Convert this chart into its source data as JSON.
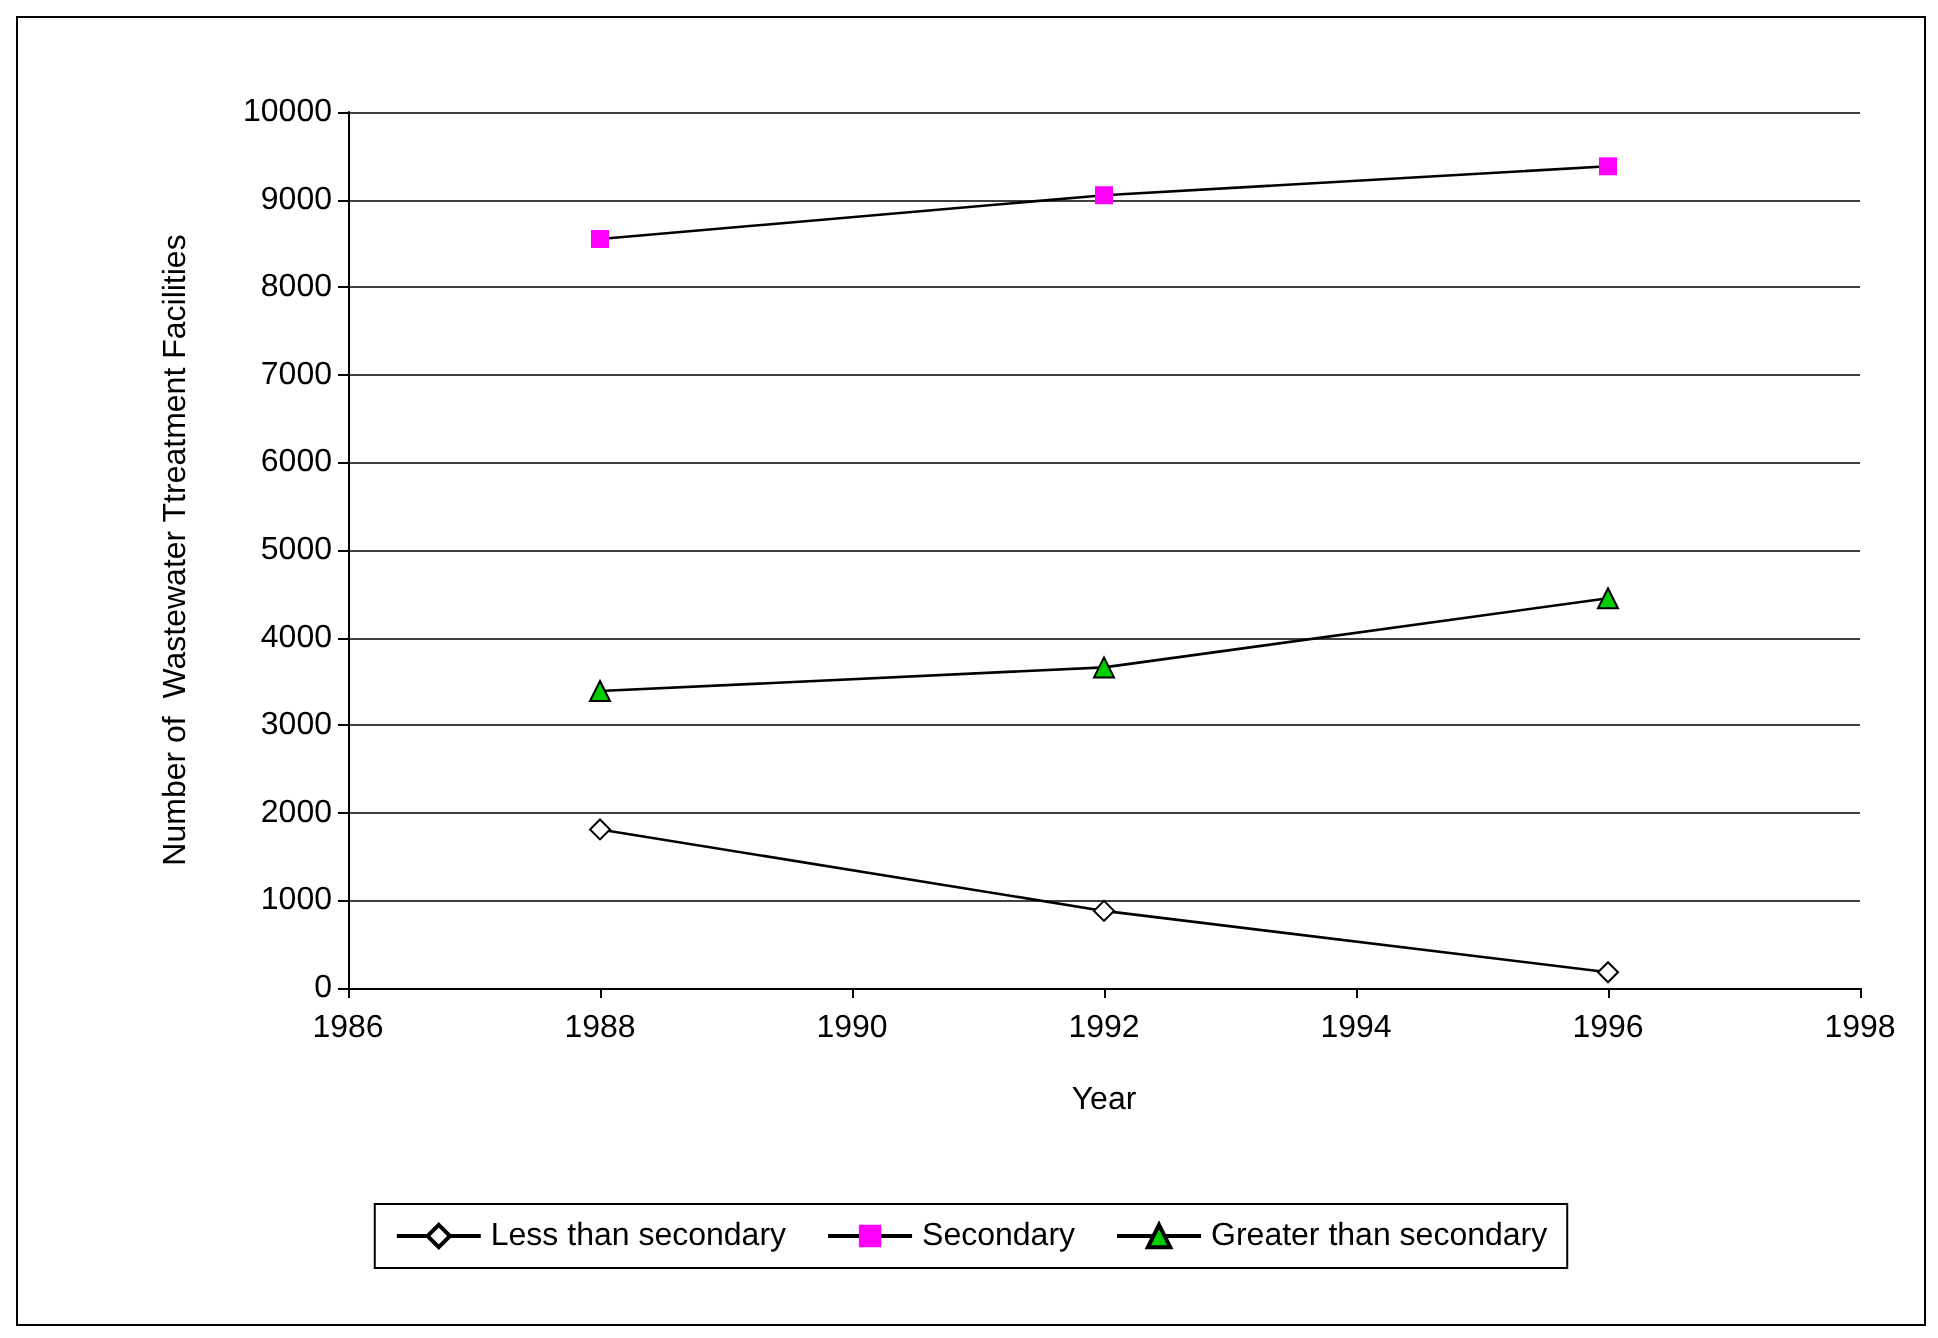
{
  "chart_data": {
    "type": "line",
    "xlabel": "Year",
    "ylabel": "Number of  Wastewater Ttreatment Facilities",
    "x": [
      1988,
      1992,
      1996
    ],
    "xlim": [
      1986,
      1998
    ],
    "xticks": [
      1986,
      1988,
      1990,
      1992,
      1994,
      1996,
      1998
    ],
    "ylim": [
      0,
      10000
    ],
    "yticks": [
      0,
      1000,
      2000,
      3000,
      4000,
      5000,
      6000,
      7000,
      8000,
      9000,
      10000
    ],
    "grid": "y",
    "legend": "bottom",
    "series": [
      {
        "name": "Less than secondary",
        "color": "#ffffff",
        "marker": "diamond",
        "values": [
          1810,
          880,
          180
        ]
      },
      {
        "name": "Secondary",
        "color": "#ff00ff",
        "marker": "square",
        "values": [
          8550,
          9050,
          9380
        ]
      },
      {
        "name": "Greater than secondary",
        "color": "#00cc00",
        "marker": "triangle",
        "values": [
          3390,
          3660,
          4450
        ]
      }
    ]
  }
}
